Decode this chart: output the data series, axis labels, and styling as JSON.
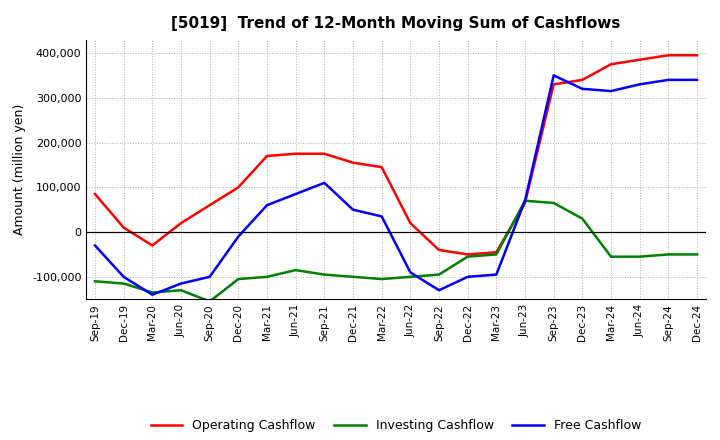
{
  "title": "[5019]  Trend of 12-Month Moving Sum of Cashflows",
  "ylabel": "Amount (million yen)",
  "x_labels": [
    "Sep-19",
    "Dec-19",
    "Mar-20",
    "Jun-20",
    "Sep-20",
    "Dec-20",
    "Mar-21",
    "Jun-21",
    "Sep-21",
    "Dec-21",
    "Mar-22",
    "Jun-22",
    "Sep-22",
    "Dec-22",
    "Mar-23",
    "Jun-23",
    "Sep-23",
    "Dec-23",
    "Mar-24",
    "Jun-24",
    "Sep-24",
    "Dec-24"
  ],
  "operating": [
    85000,
    10000,
    -30000,
    20000,
    60000,
    100000,
    170000,
    175000,
    175000,
    155000,
    145000,
    20000,
    -40000,
    -50000,
    -45000,
    65000,
    330000,
    340000,
    375000,
    385000,
    395000,
    395000
  ],
  "investing": [
    -110000,
    -115000,
    -135000,
    -130000,
    -155000,
    -105000,
    -100000,
    -85000,
    -95000,
    -100000,
    -105000,
    -100000,
    -95000,
    -55000,
    -50000,
    70000,
    65000,
    30000,
    -55000,
    -55000,
    -50000,
    -50000
  ],
  "free": [
    -30000,
    -100000,
    -140000,
    -115000,
    -100000,
    -10000,
    60000,
    85000,
    110000,
    50000,
    35000,
    -90000,
    -130000,
    -100000,
    -95000,
    70000,
    350000,
    320000,
    315000,
    330000,
    340000,
    340000
  ],
  "operating_color": "#ff0000",
  "investing_color": "#008000",
  "free_color": "#0000ff",
  "ylim": [
    -150000,
    430000
  ],
  "yticks": [
    -100000,
    0,
    100000,
    200000,
    300000,
    400000
  ],
  "background_color": "#ffffff",
  "grid_color": "#b0b0b0",
  "line_width": 1.8,
  "legend_labels": [
    "Operating Cashflow",
    "Investing Cashflow",
    "Free Cashflow"
  ]
}
